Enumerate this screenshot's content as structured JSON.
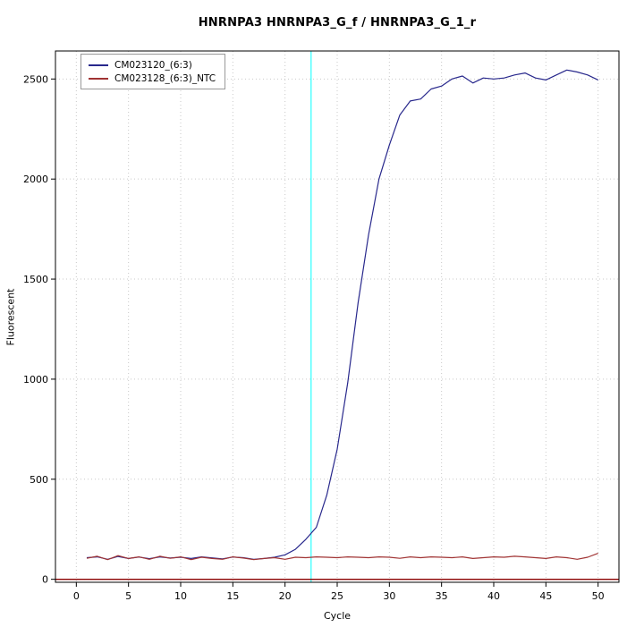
{
  "title": "HNRNPA3  HNRNPA3_G_f / HNRNPA3_G_1_r",
  "chart_data": {
    "type": "line",
    "title": "HNRNPA3  HNRNPA3_G_f / HNRNPA3_G_1_r",
    "xlabel": "Cycle",
    "ylabel": "Fluorescent",
    "xlim": [
      -2,
      52
    ],
    "ylim": [
      -15,
      2640
    ],
    "x_ticks": [
      0,
      5,
      10,
      15,
      20,
      25,
      30,
      35,
      40,
      45,
      50
    ],
    "y_ticks": [
      0,
      500,
      1000,
      1500,
      2000,
      2500
    ],
    "grid": true,
    "legend_position": "top-left",
    "colors": {
      "grid": "#c9c9c9",
      "box": "#000000"
    },
    "threshold_line": {
      "x": 22.5,
      "color": "#00ffff"
    },
    "baseline": {
      "y": 0,
      "color": "#8b0000"
    },
    "series": [
      {
        "name": "CM023120_(6:3)",
        "color": "#28288c",
        "x": [
          1,
          2,
          3,
          4,
          5,
          6,
          7,
          8,
          9,
          10,
          11,
          12,
          13,
          14,
          15,
          16,
          17,
          18,
          19,
          20,
          21,
          22,
          23,
          24,
          25,
          26,
          27,
          28,
          29,
          30,
          31,
          32,
          33,
          34,
          35,
          36,
          37,
          38,
          39,
          40,
          41,
          42,
          43,
          44,
          45,
          46,
          47,
          48,
          49,
          50
        ],
        "values": [
          108,
          112,
          100,
          114,
          104,
          111,
          103,
          112,
          106,
          110,
          104,
          112,
          107,
          102,
          111,
          108,
          100,
          104,
          110,
          122,
          150,
          200,
          260,
          420,
          650,
          980,
          1380,
          1720,
          2000,
          2170,
          2320,
          2390,
          2400,
          2450,
          2465,
          2500,
          2515,
          2480,
          2505,
          2500,
          2505,
          2520,
          2530,
          2505,
          2495,
          2520,
          2545,
          2535,
          2520,
          2495
        ]
      },
      {
        "name": "CM023128_(6:3)_NTC",
        "color": "#a03333",
        "x": [
          1,
          2,
          3,
          4,
          5,
          6,
          7,
          8,
          9,
          10,
          11,
          12,
          13,
          14,
          15,
          16,
          17,
          18,
          19,
          20,
          21,
          22,
          23,
          24,
          25,
          26,
          27,
          28,
          29,
          30,
          31,
          32,
          33,
          34,
          35,
          36,
          37,
          38,
          39,
          40,
          41,
          42,
          43,
          44,
          45,
          46,
          47,
          48,
          49,
          50
        ],
        "values": [
          105,
          115,
          98,
          118,
          104,
          112,
          100,
          115,
          105,
          112,
          98,
          110,
          104,
          100,
          112,
          106,
          98,
          104,
          108,
          100,
          110,
          108,
          112,
          110,
          108,
          112,
          110,
          108,
          112,
          110,
          105,
          112,
          108,
          112,
          110,
          108,
          112,
          104,
          108,
          112,
          110,
          115,
          112,
          108,
          104,
          112,
          108,
          100,
          110,
          130
        ]
      }
    ]
  }
}
